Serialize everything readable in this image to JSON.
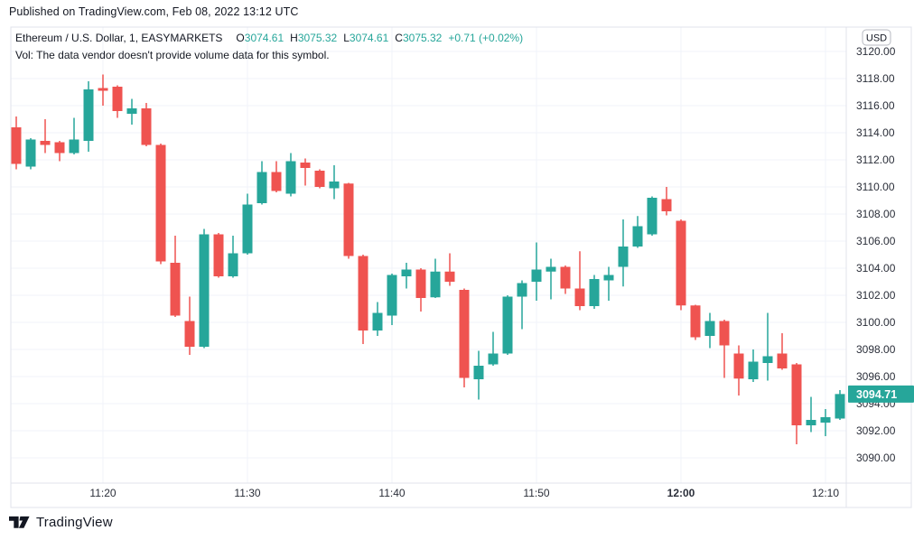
{
  "published_bar": {
    "text": "Published on TradingView.com, Feb 08, 2022 13:12 UTC"
  },
  "legend": {
    "title": "Ethereum / U.S. Dollar, 1, EASYMARKETS",
    "ohlc": [
      {
        "label": "O",
        "value": "3074.61"
      },
      {
        "label": "H",
        "value": "3075.32"
      },
      {
        "label": "L",
        "value": "3074.61"
      },
      {
        "label": "C",
        "value": "3075.32"
      }
    ],
    "change": "+0.71 (+0.02%)",
    "vol_note": "Vol: The data vendor doesn't provide volume data for this symbol."
  },
  "price_axis": {
    "currency_badge": "USD",
    "ticks": [
      "3120.00",
      "3118.00",
      "3116.00",
      "3114.00",
      "3112.00",
      "3110.00",
      "3108.00",
      "3106.00",
      "3104.00",
      "3102.00",
      "3100.00",
      "3098.00",
      "3096.00",
      "3094.00",
      "3092.00",
      "3090.00"
    ],
    "last_price_badge": "3094.71"
  },
  "time_axis": {
    "ticks": [
      {
        "label": "11:20",
        "minute_offset": 6,
        "bold": false
      },
      {
        "label": "11:30",
        "minute_offset": 16,
        "bold": false
      },
      {
        "label": "11:40",
        "minute_offset": 26,
        "bold": false
      },
      {
        "label": "11:50",
        "minute_offset": 36,
        "bold": false
      },
      {
        "label": "12:00",
        "minute_offset": 46,
        "bold": true
      },
      {
        "label": "12:10",
        "minute_offset": 56,
        "bold": false
      }
    ]
  },
  "footer": {
    "logo_text": "TradingView"
  },
  "colors": {
    "up": "#26a69a",
    "down": "#ef5350",
    "grid": "#f0f3fa",
    "frame": "#e0e3eb",
    "axis_text": "#2a2e39",
    "badge_text": "#ffffff",
    "usd_badge_border": "#b7bac1"
  },
  "chart_data": {
    "type": "candlestick",
    "title": "Ethereum / U.S. Dollar",
    "interval": "1",
    "exchange": "EASYMARKETS",
    "last_price": 3094.71,
    "ylim": [
      3089.0,
      3121.0
    ],
    "y_tick_step": 2.0,
    "x_tick_labels": [
      "11:20",
      "11:30",
      "11:40",
      "11:50",
      "12:00",
      "12:10"
    ],
    "grid": true,
    "candles": [
      {
        "t": "11:14",
        "o": 3114.4,
        "h": 3115.2,
        "l": 3111.3,
        "c": 3111.7
      },
      {
        "t": "11:15",
        "o": 3111.5,
        "h": 3113.6,
        "l": 3111.3,
        "c": 3113.5
      },
      {
        "t": "11:16",
        "o": 3113.4,
        "h": 3115.0,
        "l": 3112.5,
        "c": 3113.1
      },
      {
        "t": "11:17",
        "o": 3113.3,
        "h": 3113.4,
        "l": 3111.9,
        "c": 3112.5
      },
      {
        "t": "11:18",
        "o": 3112.5,
        "h": 3115.1,
        "l": 3112.4,
        "c": 3113.5
      },
      {
        "t": "11:19",
        "o": 3113.4,
        "h": 3117.8,
        "l": 3112.6,
        "c": 3117.2
      },
      {
        "t": "11:20",
        "o": 3117.3,
        "h": 3118.3,
        "l": 3116.0,
        "c": 3117.1
      },
      {
        "t": "11:21",
        "o": 3117.4,
        "h": 3117.5,
        "l": 3115.1,
        "c": 3115.6
      },
      {
        "t": "11:22",
        "o": 3115.4,
        "h": 3116.5,
        "l": 3114.6,
        "c": 3115.8
      },
      {
        "t": "11:23",
        "o": 3115.8,
        "h": 3116.2,
        "l": 3113.0,
        "c": 3113.1
      },
      {
        "t": "11:24",
        "o": 3113.1,
        "h": 3113.2,
        "l": 3104.3,
        "c": 3104.5
      },
      {
        "t": "11:25",
        "o": 3104.4,
        "h": 3106.4,
        "l": 3100.4,
        "c": 3100.5
      },
      {
        "t": "11:26",
        "o": 3100.1,
        "h": 3101.9,
        "l": 3097.6,
        "c": 3098.2
      },
      {
        "t": "11:27",
        "o": 3098.2,
        "h": 3106.9,
        "l": 3098.1,
        "c": 3106.5
      },
      {
        "t": "11:28",
        "o": 3106.5,
        "h": 3106.6,
        "l": 3103.3,
        "c": 3103.4
      },
      {
        "t": "11:29",
        "o": 3103.4,
        "h": 3106.4,
        "l": 3103.3,
        "c": 3105.1
      },
      {
        "t": "11:30",
        "o": 3105.1,
        "h": 3109.5,
        "l": 3105.0,
        "c": 3108.7
      },
      {
        "t": "11:31",
        "o": 3108.8,
        "h": 3111.9,
        "l": 3108.7,
        "c": 3111.1
      },
      {
        "t": "11:32",
        "o": 3111.1,
        "h": 3111.9,
        "l": 3109.6,
        "c": 3109.7
      },
      {
        "t": "11:33",
        "o": 3109.5,
        "h": 3112.5,
        "l": 3109.3,
        "c": 3111.9
      },
      {
        "t": "11:34",
        "o": 3111.8,
        "h": 3112.1,
        "l": 3110.1,
        "c": 3111.4
      },
      {
        "t": "11:35",
        "o": 3111.2,
        "h": 3111.3,
        "l": 3109.9,
        "c": 3110.0
      },
      {
        "t": "11:36",
        "o": 3109.9,
        "h": 3111.6,
        "l": 3109.1,
        "c": 3110.4
      },
      {
        "t": "11:37",
        "o": 3110.25,
        "h": 3110.3,
        "l": 3104.7,
        "c": 3104.9
      },
      {
        "t": "11:38",
        "o": 3104.9,
        "h": 3105.0,
        "l": 3098.4,
        "c": 3099.4
      },
      {
        "t": "11:39",
        "o": 3099.4,
        "h": 3101.5,
        "l": 3099.0,
        "c": 3100.7
      },
      {
        "t": "11:40",
        "o": 3100.5,
        "h": 3103.6,
        "l": 3099.8,
        "c": 3103.5
      },
      {
        "t": "11:41",
        "o": 3103.4,
        "h": 3104.4,
        "l": 3102.5,
        "c": 3103.9
      },
      {
        "t": "11:42",
        "o": 3103.9,
        "h": 3104.0,
        "l": 3100.8,
        "c": 3101.8
      },
      {
        "t": "11:43",
        "o": 3101.85,
        "h": 3104.7,
        "l": 3101.8,
        "c": 3103.75
      },
      {
        "t": "11:44",
        "o": 3103.75,
        "h": 3105.1,
        "l": 3102.7,
        "c": 3103.0
      },
      {
        "t": "11:45",
        "o": 3102.4,
        "h": 3102.5,
        "l": 3095.2,
        "c": 3095.9
      },
      {
        "t": "11:46",
        "o": 3095.8,
        "h": 3097.9,
        "l": 3094.3,
        "c": 3096.8
      },
      {
        "t": "11:47",
        "o": 3096.9,
        "h": 3099.3,
        "l": 3096.8,
        "c": 3097.7
      },
      {
        "t": "11:48",
        "o": 3097.7,
        "h": 3102.0,
        "l": 3097.6,
        "c": 3101.9
      },
      {
        "t": "11:49",
        "o": 3101.9,
        "h": 3103.1,
        "l": 3099.5,
        "c": 3102.9
      },
      {
        "t": "11:50",
        "o": 3103.0,
        "h": 3105.9,
        "l": 3101.6,
        "c": 3103.9
      },
      {
        "t": "11:51",
        "o": 3103.75,
        "h": 3104.7,
        "l": 3101.7,
        "c": 3104.1
      },
      {
        "t": "11:52",
        "o": 3104.1,
        "h": 3104.2,
        "l": 3102.1,
        "c": 3102.5
      },
      {
        "t": "11:53",
        "o": 3102.5,
        "h": 3105.25,
        "l": 3100.9,
        "c": 3101.2
      },
      {
        "t": "11:54",
        "o": 3101.2,
        "h": 3103.5,
        "l": 3101.0,
        "c": 3103.2
      },
      {
        "t": "11:55",
        "o": 3103.1,
        "h": 3104.1,
        "l": 3101.6,
        "c": 3103.5
      },
      {
        "t": "11:56",
        "o": 3104.1,
        "h": 3107.6,
        "l": 3102.65,
        "c": 3105.6
      },
      {
        "t": "11:57",
        "o": 3105.6,
        "h": 3107.85,
        "l": 3105.5,
        "c": 3107.1
      },
      {
        "t": "11:58",
        "o": 3106.5,
        "h": 3109.3,
        "l": 3106.4,
        "c": 3109.2
      },
      {
        "t": "11:59",
        "o": 3109.1,
        "h": 3110.0,
        "l": 3107.9,
        "c": 3108.2
      },
      {
        "t": "12:00",
        "o": 3107.5,
        "h": 3107.6,
        "l": 3100.9,
        "c": 3101.25
      },
      {
        "t": "12:01",
        "o": 3101.25,
        "h": 3101.3,
        "l": 3098.7,
        "c": 3098.9
      },
      {
        "t": "12:02",
        "o": 3099.0,
        "h": 3100.7,
        "l": 3098.1,
        "c": 3100.1
      },
      {
        "t": "12:03",
        "o": 3100.1,
        "h": 3100.2,
        "l": 3095.9,
        "c": 3098.3
      },
      {
        "t": "12:04",
        "o": 3097.7,
        "h": 3098.3,
        "l": 3094.6,
        "c": 3095.85
      },
      {
        "t": "12:05",
        "o": 3095.8,
        "h": 3098.0,
        "l": 3095.6,
        "c": 3097.1
      },
      {
        "t": "12:06",
        "o": 3097.0,
        "h": 3100.7,
        "l": 3095.7,
        "c": 3097.5
      },
      {
        "t": "12:07",
        "o": 3097.7,
        "h": 3099.2,
        "l": 3096.5,
        "c": 3096.6
      },
      {
        "t": "12:08",
        "o": 3096.9,
        "h": 3097.0,
        "l": 3091.0,
        "c": 3092.4
      },
      {
        "t": "12:09",
        "o": 3092.4,
        "h": 3094.5,
        "l": 3091.9,
        "c": 3092.8
      },
      {
        "t": "12:10",
        "o": 3092.6,
        "h": 3093.6,
        "l": 3091.6,
        "c": 3093.0
      },
      {
        "t": "12:11",
        "o": 3092.9,
        "h": 3095.0,
        "l": 3092.8,
        "c": 3094.71
      }
    ]
  }
}
